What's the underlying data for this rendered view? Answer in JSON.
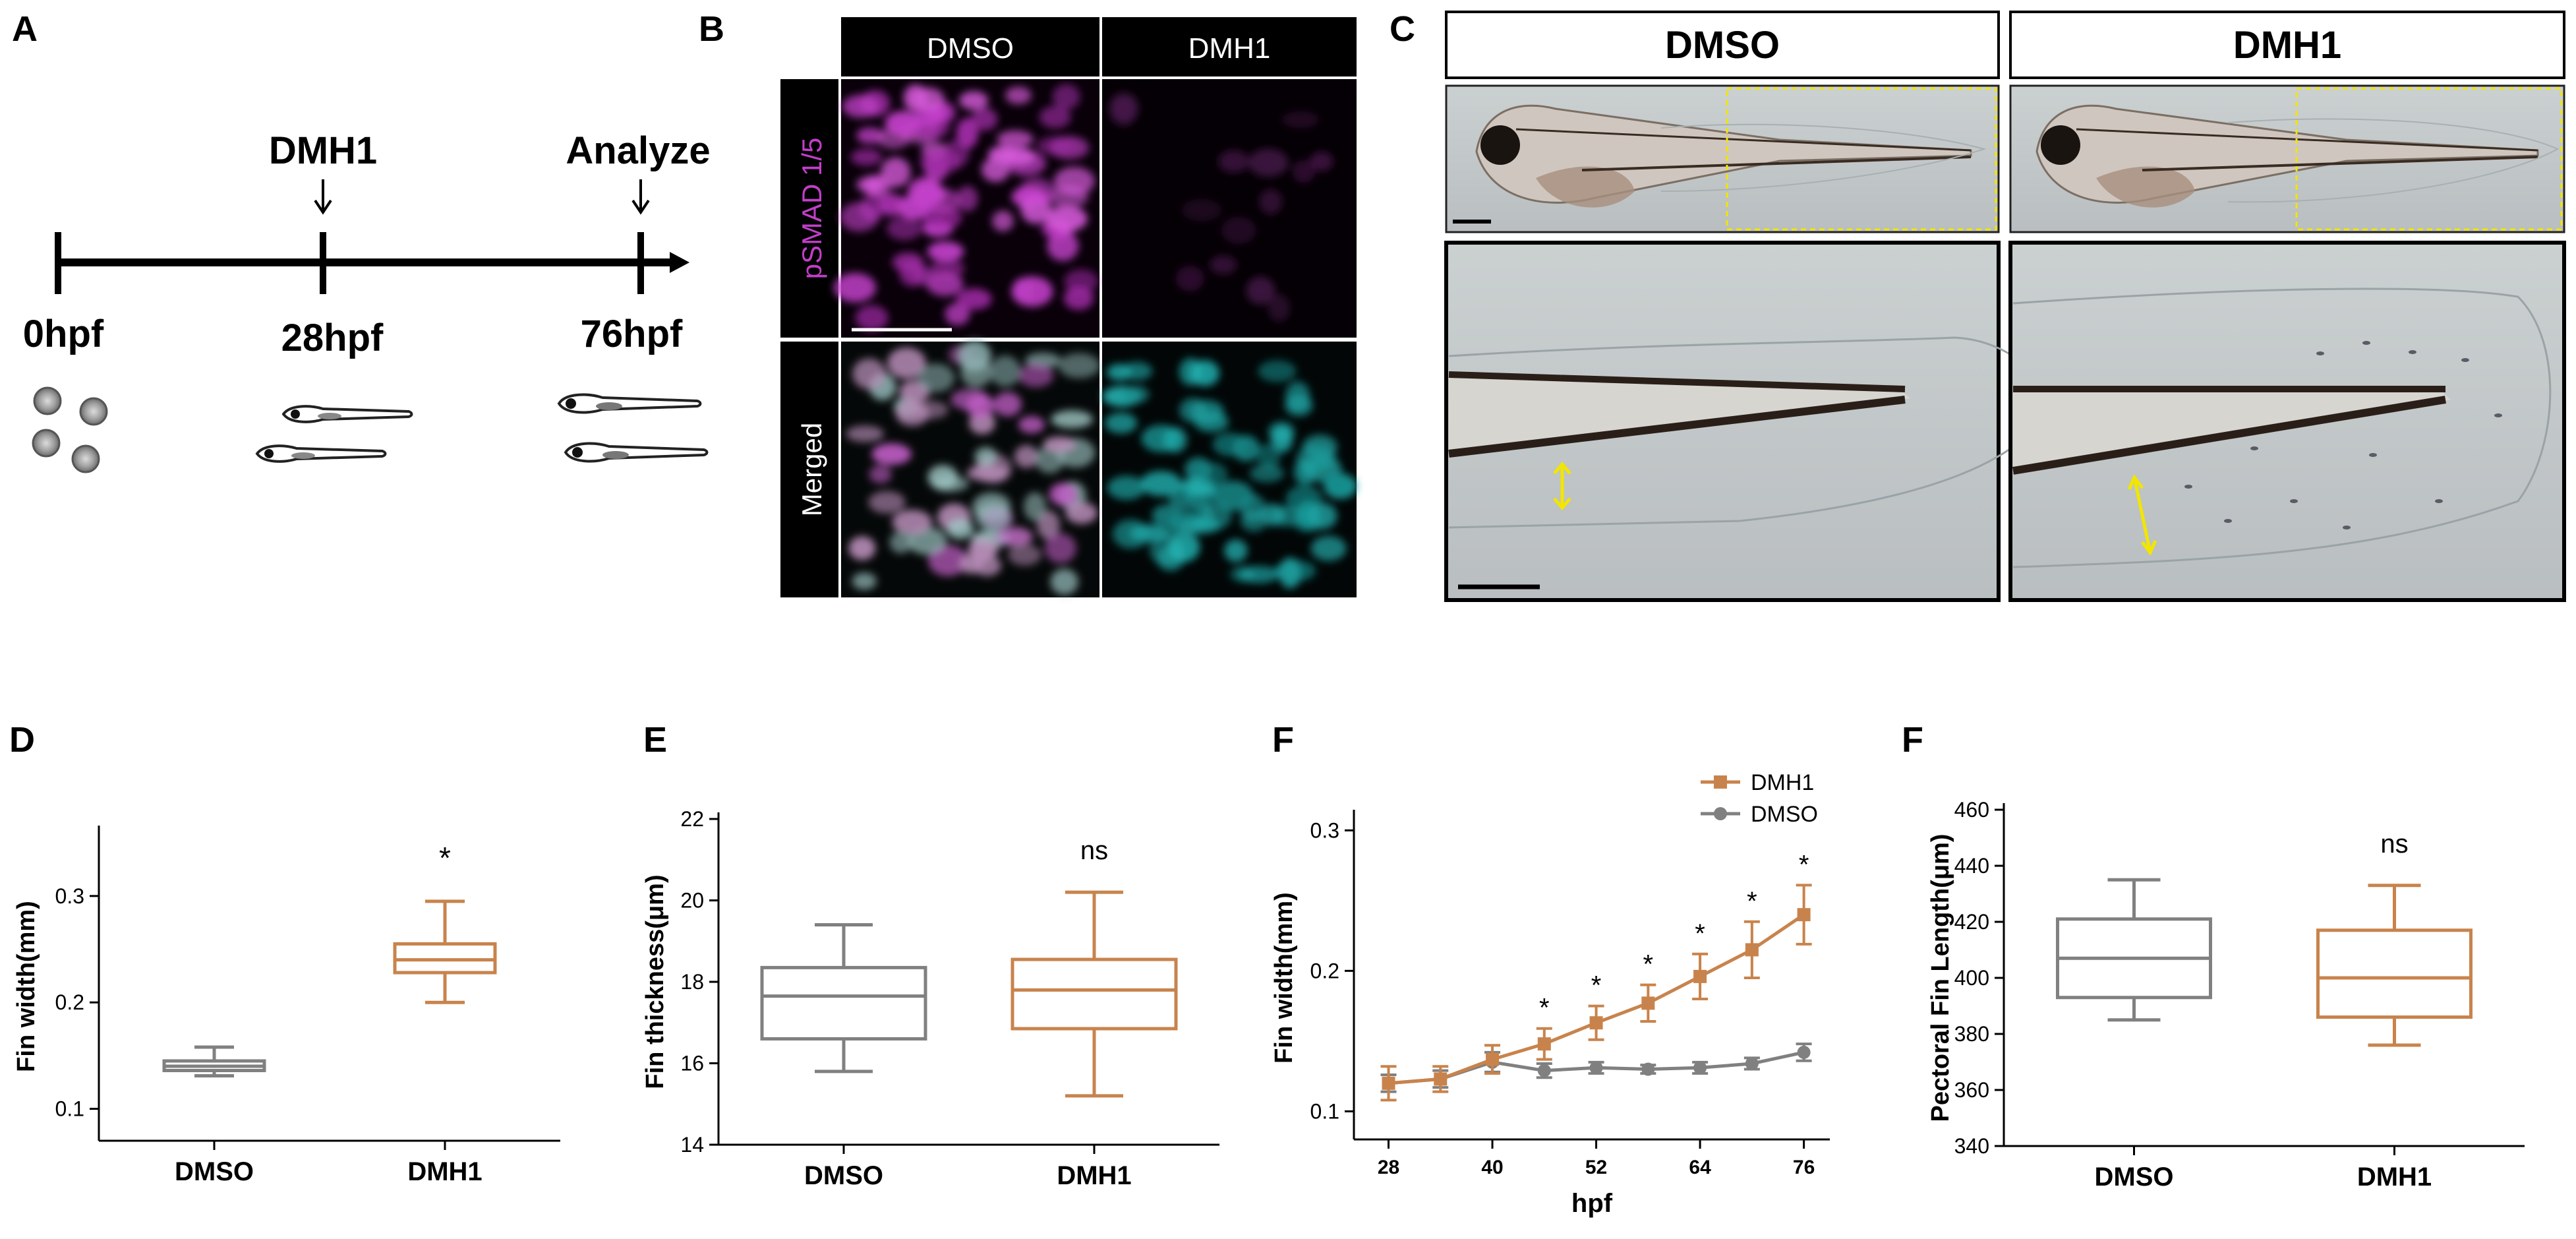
{
  "panel_letters": {
    "A": "A",
    "B": "B",
    "C": "C",
    "D": "D",
    "E": "E",
    "F1": "F",
    "F2": "F"
  },
  "colors": {
    "dmso": "#808080",
    "dmh1": "#c8834c",
    "magenta": "#c23fc9",
    "cyan": "#1fa3a3",
    "yellow": "#f2e600"
  },
  "panelA": {
    "treatment_label": "DMH1",
    "analyze_label": "Analyze",
    "timepoints": [
      "0hpf",
      "28hpf",
      "76hpf"
    ]
  },
  "panelB": {
    "columns": [
      "DMSO",
      "DMH1"
    ],
    "rows": [
      "pSMAD 1/5",
      "Merged"
    ]
  },
  "panelC": {
    "columns": [
      "DMSO",
      "DMH1"
    ]
  },
  "chart_data": [
    {
      "id": "D",
      "type": "box",
      "ylabel": "Fin width(mm)",
      "yticks": [
        "0.1",
        "0.2",
        "0.3"
      ],
      "ylim": [
        0.07,
        0.36
      ],
      "categories": [
        "DMSO",
        "DMH1"
      ],
      "boxes": [
        {
          "name": "DMSO",
          "min": 0.131,
          "q1": 0.136,
          "median": 0.14,
          "q3": 0.145,
          "max": 0.158
        },
        {
          "name": "DMH1",
          "min": 0.2,
          "q1": 0.228,
          "median": 0.24,
          "q3": 0.255,
          "max": 0.295
        }
      ],
      "annotations": [
        {
          "category": "DMH1",
          "text": "*"
        }
      ]
    },
    {
      "id": "E",
      "type": "box",
      "ylabel": "Fin thickness(μm)",
      "yticks": [
        "14",
        "16",
        "18",
        "20",
        "22"
      ],
      "ylim": [
        14,
        22
      ],
      "categories": [
        "DMSO",
        "DMH1"
      ],
      "boxes": [
        {
          "name": "DMSO",
          "min": 15.8,
          "q1": 16.6,
          "median": 17.65,
          "q3": 18.35,
          "max": 19.4
        },
        {
          "name": "DMH1",
          "min": 15.2,
          "q1": 16.85,
          "median": 17.8,
          "q3": 18.55,
          "max": 20.2
        }
      ],
      "annotations": [
        {
          "category": "DMH1",
          "text": "ns"
        }
      ]
    },
    {
      "id": "F1",
      "type": "line",
      "xlabel": "hpf",
      "ylabel": "Fin width(mm)",
      "x": [
        28,
        34,
        40,
        46,
        52,
        58,
        64,
        70,
        76
      ],
      "xticks": [
        "28",
        "40",
        "52",
        "64",
        "76"
      ],
      "yticks": [
        "0.1",
        "0.2",
        "0.3"
      ],
      "ylim": [
        0.08,
        0.31
      ],
      "series": [
        {
          "name": "DMH1",
          "values": [
            0.12,
            0.123,
            0.137,
            0.148,
            0.163,
            0.177,
            0.196,
            0.215,
            0.24
          ],
          "errors": [
            0.012,
            0.009,
            0.01,
            0.011,
            0.012,
            0.013,
            0.016,
            0.02,
            0.021
          ]
        },
        {
          "name": "DMSO",
          "values": [
            0.12,
            0.123,
            0.135,
            0.129,
            0.131,
            0.13,
            0.131,
            0.134,
            0.142
          ],
          "errors": [
            0.006,
            0.006,
            0.007,
            0.005,
            0.004,
            0.003,
            0.004,
            0.004,
            0.006
          ]
        }
      ],
      "annotations": [
        {
          "x": 46,
          "text": "*"
        },
        {
          "x": 52,
          "text": "*"
        },
        {
          "x": 58,
          "text": "*"
        },
        {
          "x": 64,
          "text": "*"
        },
        {
          "x": 70,
          "text": "*"
        },
        {
          "x": 76,
          "text": "*"
        }
      ]
    },
    {
      "id": "F2",
      "type": "box",
      "ylabel": "Pectoral Fin Length(μm)",
      "yticks": [
        "340",
        "360",
        "380",
        "400",
        "420",
        "440",
        "460"
      ],
      "ylim": [
        340,
        460
      ],
      "categories": [
        "DMSO",
        "DMH1"
      ],
      "boxes": [
        {
          "name": "DMSO",
          "min": 385,
          "q1": 393,
          "median": 407,
          "q3": 421,
          "max": 435
        },
        {
          "name": "DMH1",
          "min": 376,
          "q1": 386,
          "median": 400,
          "q3": 417,
          "max": 433
        }
      ],
      "annotations": [
        {
          "category": "DMH1",
          "text": "ns"
        }
      ]
    }
  ]
}
